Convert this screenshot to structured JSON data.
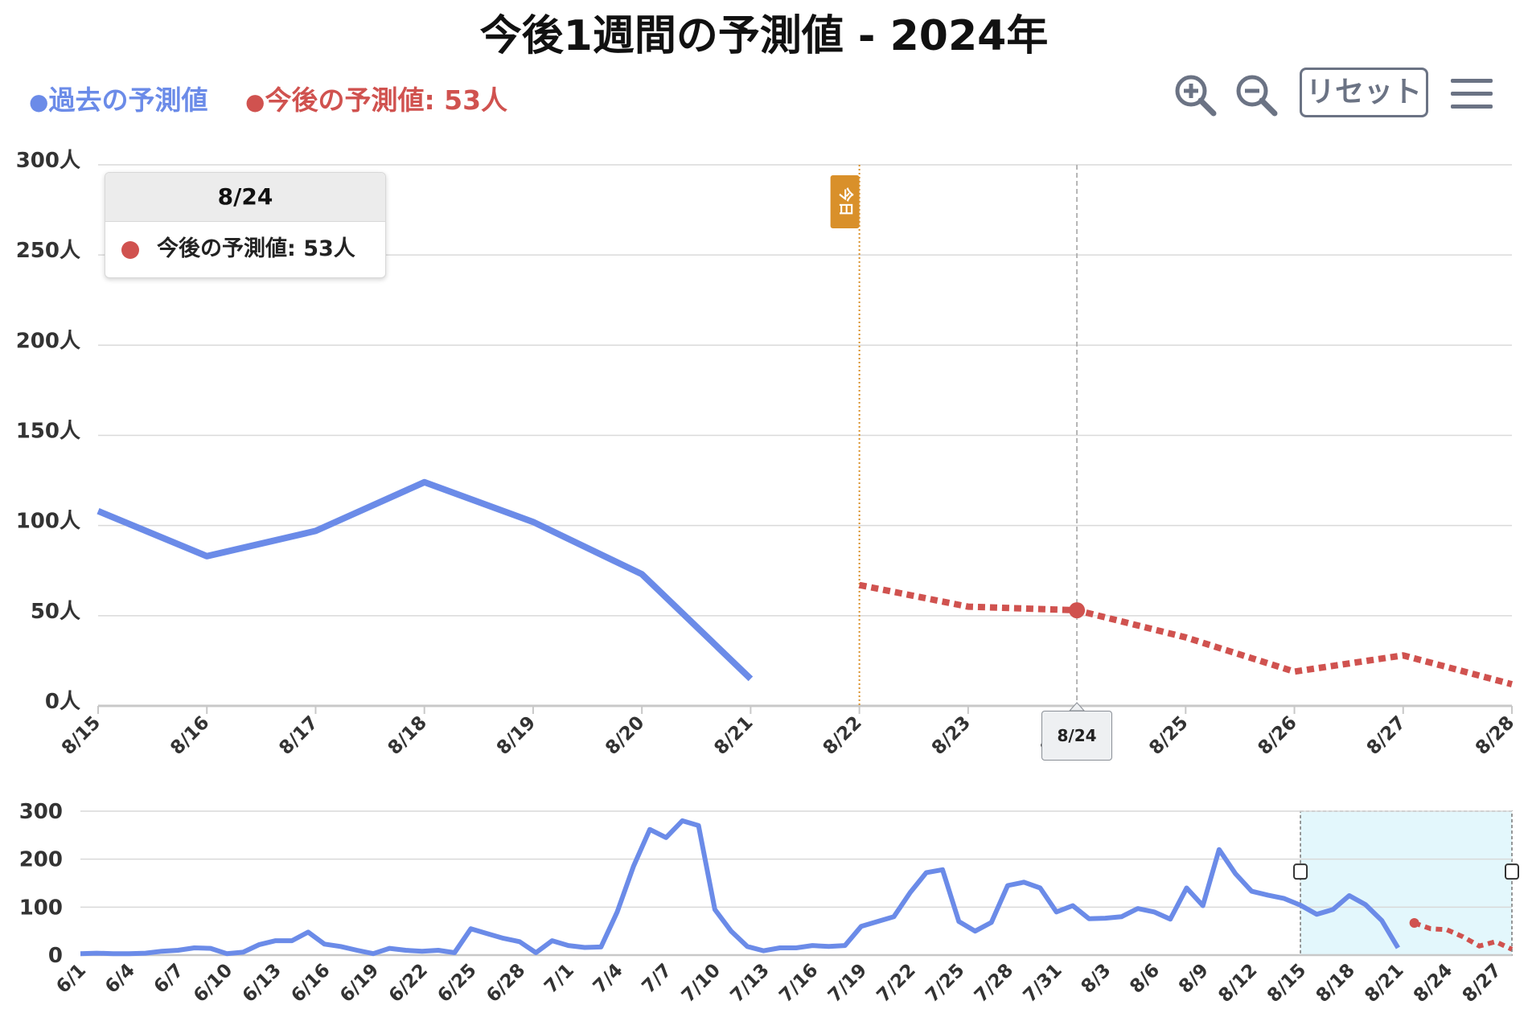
{
  "title": "今後1週間の予測値 - 2024年",
  "legend": {
    "past_label": "過去の予測値",
    "future_label": "今後の予測値: 53人",
    "dot_glyph": "●"
  },
  "toolbar": {
    "zoom_in_icon": "zoom-in-icon",
    "zoom_out_icon": "zoom-out-icon",
    "reset_label": "リセット",
    "menu_icon": "hamburger-menu-icon"
  },
  "tooltip": {
    "header": "8/24",
    "text": "今後の予測値:  53人"
  },
  "today_marker": "今日",
  "hover_x_label": "8/24",
  "colors": {
    "past": "#6b8be8",
    "future": "#d0524f",
    "today": "#d9902a",
    "grid": "#d9d9d9",
    "navigator_window": "#e3f7fc"
  },
  "chart_data": [
    {
      "type": "line",
      "chart": "main",
      "x": [
        "8/15",
        "8/16",
        "8/17",
        "8/18",
        "8/19",
        "8/20",
        "8/21",
        "8/22",
        "8/23",
        "8/24",
        "8/25",
        "8/26",
        "8/27",
        "8/28"
      ],
      "x_ticks": [
        "8/15",
        "8/16",
        "8/17",
        "8/18",
        "8/19",
        "8/20",
        "8/21",
        "8/22",
        "8/23",
        "8/24",
        "8/25",
        "8/26",
        "8/27",
        "8/28"
      ],
      "y_ticks": [
        "0人",
        "50人",
        "100人",
        "150人",
        "200人",
        "250人",
        "300人"
      ],
      "ylim": [
        0,
        300
      ],
      "grid": true,
      "legend_position": "top-left",
      "series": [
        {
          "name": "過去の予測値",
          "style": "solid",
          "x": [
            "8/15",
            "8/16",
            "8/17",
            "8/18",
            "8/19",
            "8/20",
            "8/21"
          ],
          "values": [
            108,
            83,
            97,
            124,
            102,
            73,
            15
          ]
        },
        {
          "name": "今後の予測値",
          "style": "dotted",
          "x": [
            "8/22",
            "8/23",
            "8/24",
            "8/25",
            "8/26",
            "8/27",
            "8/28"
          ],
          "values": [
            67,
            55,
            53,
            38,
            19,
            28,
            12
          ]
        }
      ],
      "annotations": [
        {
          "type": "vertical-line",
          "x": "8/22",
          "label": "今日"
        },
        {
          "type": "crosshair",
          "x": "8/24",
          "label": "8/24"
        }
      ]
    },
    {
      "type": "line",
      "chart": "navigator",
      "x_ticks": [
        "6/1",
        "6/4",
        "6/7",
        "6/10",
        "6/13",
        "6/16",
        "6/19",
        "6/22",
        "6/25",
        "6/28",
        "7/1",
        "7/4",
        "7/7",
        "7/10",
        "7/13",
        "7/16",
        "7/19",
        "7/22",
        "7/25",
        "7/28",
        "7/31",
        "8/3",
        "8/6",
        "8/9",
        "8/12",
        "8/15",
        "8/18",
        "8/21",
        "8/24",
        "8/27"
      ],
      "y_ticks": [
        "0",
        "100",
        "200",
        "300"
      ],
      "ylim": [
        0,
        300
      ],
      "selection": [
        "8/15",
        "8/28"
      ],
      "series": [
        {
          "name": "過去の予測値",
          "style": "solid",
          "values": [
            3,
            4,
            3,
            3,
            4,
            8,
            10,
            15,
            14,
            3,
            6,
            22,
            30,
            30,
            48,
            23,
            18,
            10,
            3,
            14,
            10,
            8,
            10,
            5,
            55,
            45,
            35,
            28,
            5,
            30,
            20,
            16,
            17,
            90,
            185,
            262,
            245,
            280,
            270,
            95,
            50,
            18,
            9,
            15,
            15,
            20,
            18,
            20,
            60,
            70,
            80,
            130,
            172,
            178,
            70,
            50,
            68,
            145,
            152,
            140,
            90,
            103,
            76,
            77,
            80,
            97,
            90,
            75,
            140,
            103,
            220,
            170,
            133,
            125,
            118,
            104,
            85,
            95,
            124,
            105,
            72,
            15
          ]
        },
        {
          "name": "今後の予測値",
          "style": "dotted",
          "values": [
            67,
            55,
            53,
            38,
            19,
            28,
            12
          ]
        }
      ]
    }
  ]
}
